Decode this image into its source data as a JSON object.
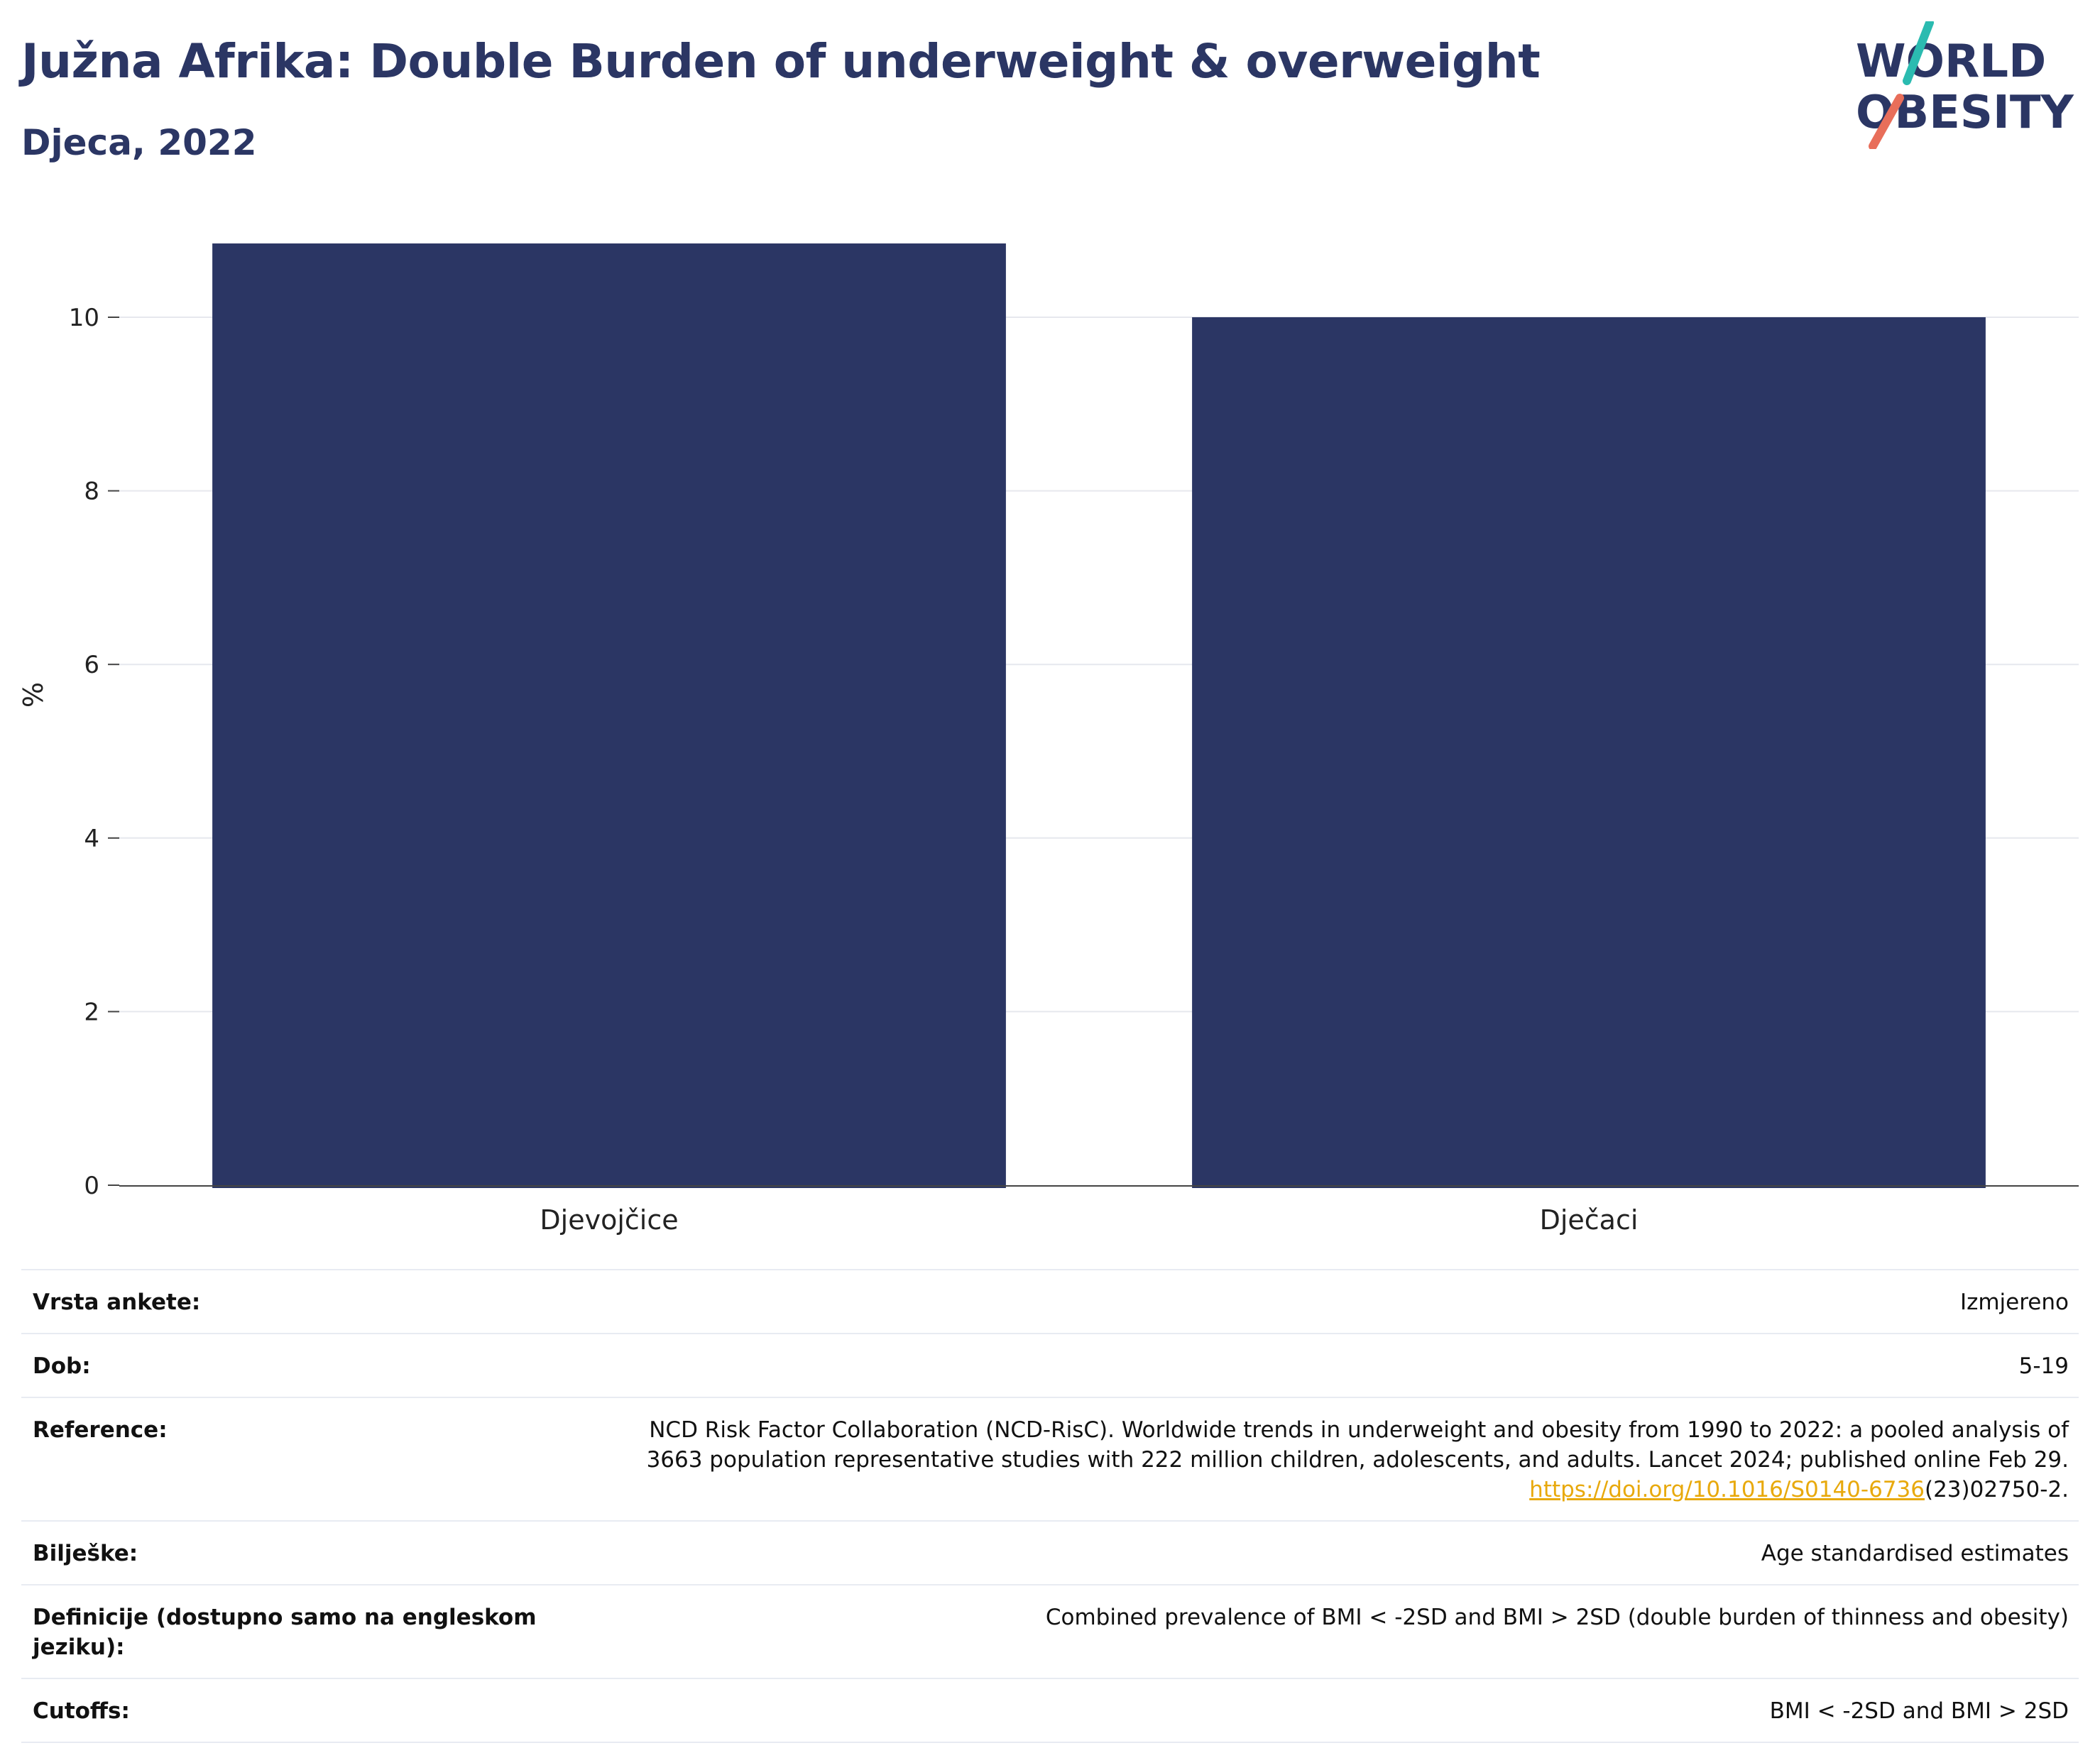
{
  "header": {
    "title": "Južna Afrika: Double Burden of underweight & overweight",
    "subtitle": "Djeca, 2022"
  },
  "logo": {
    "line1": "WORLD",
    "line2": "OBESITY",
    "colors": {
      "navy": "#2b3664",
      "teal": "#2bbbb0",
      "coral": "#e86e5a"
    }
  },
  "chart_data": {
    "type": "bar",
    "categories": [
      "Djevojčice",
      "Dječaci"
    ],
    "values": [
      10.85,
      10.0
    ],
    "title": "Južna Afrika: Double Burden of underweight & overweight",
    "subtitle": "Djeca, 2022",
    "xlabel": "",
    "ylabel": "%",
    "ylim": [
      0,
      11.3
    ],
    "yticks": [
      0,
      2,
      4,
      6,
      8,
      10
    ],
    "grid": true,
    "bar_color": "#2b3664"
  },
  "meta": {
    "rows": [
      {
        "key": "Vrsta ankete:",
        "value": "Izmjereno"
      },
      {
        "key": "Dob:",
        "value": "5-19"
      },
      {
        "key": "Reference:",
        "value_lines": [
          "NCD Risk Factor Collaboration (NCD-RisC). Worldwide trends in underweight and obesity from 1990 to 2022: a pooled analysis of",
          "3663 population representative studies with 222 million children, adolescents, and adults. Lancet 2024; published online Feb 29."
        ],
        "link": "https://doi.org/10.1016/S0140-6736",
        "link_suffix": "(23)02750-2."
      },
      {
        "key": "Bilješke:",
        "value": "Age standardised estimates"
      },
      {
        "key": "Definicije (dostupno samo na engleskom jeziku):",
        "value": "Combined prevalence of BMI < -2SD and BMI > 2SD (double burden of thinness and obesity)"
      },
      {
        "key": "Cutoffs:",
        "value": "BMI < -2SD and BMI > 2SD"
      }
    ]
  }
}
